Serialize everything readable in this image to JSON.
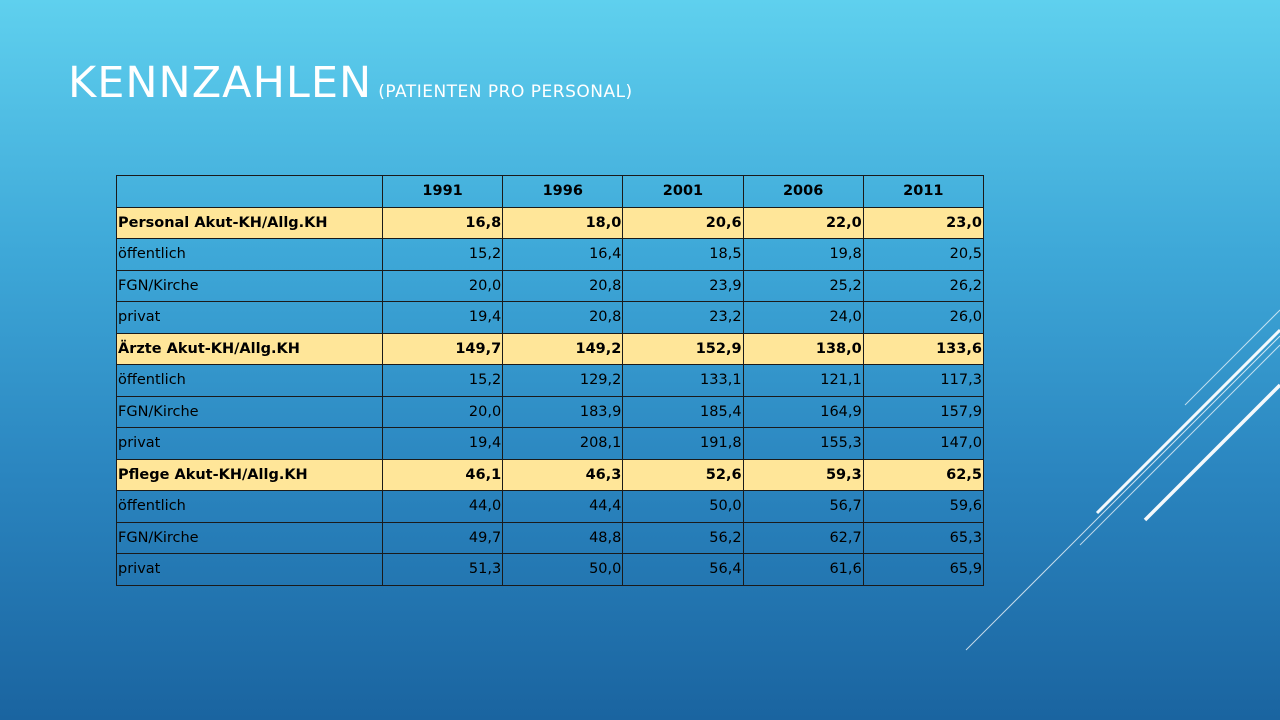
{
  "title": {
    "main": "KENNZAHLEN",
    "sub": "(PATIENTEN PRO PERSONAL)"
  },
  "table": {
    "corner": "",
    "headers": [
      "1991",
      "1996",
      "2001",
      "2006",
      "2011"
    ],
    "rows": [
      {
        "label": "Personal Akut-KH/Allg.KH",
        "values": [
          "16,8",
          "18,0",
          "20,6",
          "22,0",
          "23,0"
        ]
      },
      {
        "label": "öffentlich",
        "values": [
          "15,2",
          "16,4",
          "18,5",
          "19,8",
          "20,5"
        ]
      },
      {
        "label": "FGN/Kirche",
        "values": [
          "20,0",
          "20,8",
          "23,9",
          "25,2",
          "26,2"
        ]
      },
      {
        "label": "privat",
        "values": [
          "19,4",
          "20,8",
          "23,2",
          "24,0",
          "26,0"
        ]
      },
      {
        "label": "Ärzte Akut-KH/Allg.KH",
        "values": [
          "149,7",
          "149,2",
          "152,9",
          "138,0",
          "133,6"
        ]
      },
      {
        "label": "öffentlich",
        "values": [
          "15,2",
          "129,2",
          "133,1",
          "121,1",
          "117,3"
        ]
      },
      {
        "label": "FGN/Kirche",
        "values": [
          "20,0",
          "183,9",
          "185,4",
          "164,9",
          "157,9"
        ]
      },
      {
        "label": "privat",
        "values": [
          "19,4",
          "208,1",
          "191,8",
          "155,3",
          "147,0"
        ]
      },
      {
        "label": "Pflege Akut-KH/Allg.KH",
        "values": [
          "46,1",
          "46,3",
          "52,6",
          "59,3",
          "62,5"
        ]
      },
      {
        "label": "öffentlich",
        "values": [
          "44,0",
          "44,4",
          "50,0",
          "56,7",
          "59,6"
        ]
      },
      {
        "label": "FGN/Kirche",
        "values": [
          "49,7",
          "48,8",
          "56,2",
          "62,7",
          "65,3"
        ]
      },
      {
        "label": "privat",
        "values": [
          "51,3",
          "50,0",
          "56,4",
          "61,6",
          "65,9"
        ]
      }
    ]
  },
  "colors": {
    "highlight_row": "#ffe699",
    "background_top": "#5fd0ee",
    "background_bottom": "#1a64a0",
    "decoration_lines": "#ffffff"
  }
}
